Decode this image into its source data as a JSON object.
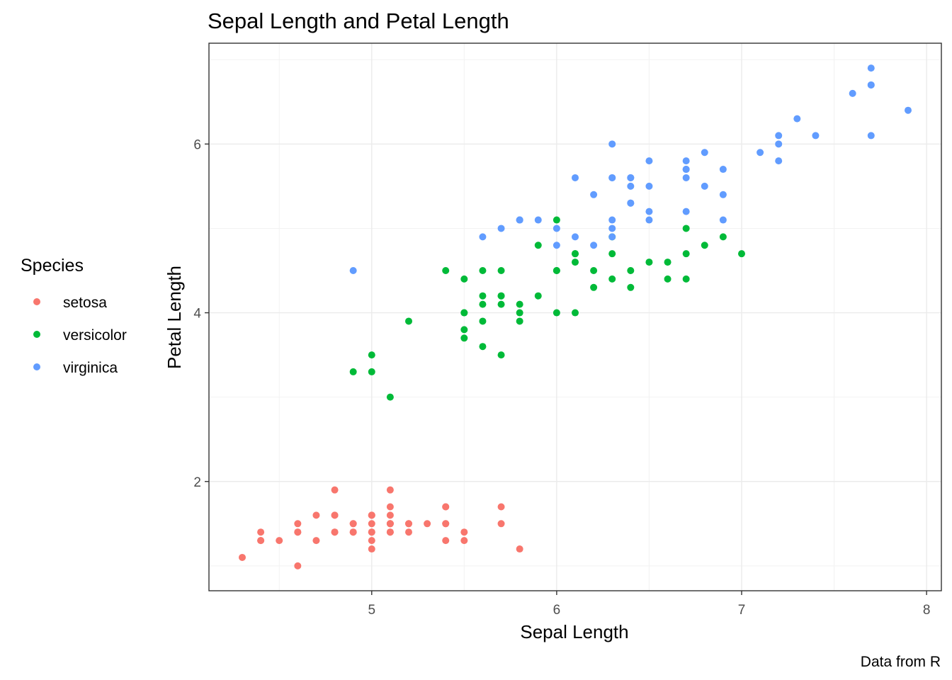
{
  "chart_data": {
    "type": "scatter",
    "title": "Sepal Length and Petal Length",
    "xlabel": "Sepal Length",
    "ylabel": "Petal Length",
    "caption": "Data from R",
    "xlim": [
      4.12,
      8.08
    ],
    "ylim": [
      0.705,
      7.195
    ],
    "xticks": [
      5,
      6,
      7,
      8
    ],
    "yticks": [
      2,
      4,
      6
    ],
    "grid": true,
    "legend": {
      "title": "Species",
      "placement": "left"
    },
    "series": [
      {
        "name": "setosa",
        "color": "#F8766D",
        "points": [
          [
            5.1,
            1.4
          ],
          [
            4.9,
            1.4
          ],
          [
            4.7,
            1.3
          ],
          [
            4.6,
            1.5
          ],
          [
            5.0,
            1.4
          ],
          [
            5.4,
            1.7
          ],
          [
            4.6,
            1.4
          ],
          [
            5.0,
            1.5
          ],
          [
            4.4,
            1.4
          ],
          [
            4.9,
            1.5
          ],
          [
            5.4,
            1.5
          ],
          [
            4.8,
            1.6
          ],
          [
            4.8,
            1.4
          ],
          [
            4.3,
            1.1
          ],
          [
            5.8,
            1.2
          ],
          [
            5.7,
            1.5
          ],
          [
            5.4,
            1.3
          ],
          [
            5.1,
            1.4
          ],
          [
            5.7,
            1.7
          ],
          [
            5.1,
            1.5
          ],
          [
            5.4,
            1.7
          ],
          [
            5.1,
            1.5
          ],
          [
            4.6,
            1.0
          ],
          [
            5.1,
            1.7
          ],
          [
            4.8,
            1.9
          ],
          [
            5.0,
            1.6
          ],
          [
            5.0,
            1.6
          ],
          [
            5.2,
            1.5
          ],
          [
            5.2,
            1.4
          ],
          [
            4.7,
            1.6
          ],
          [
            4.8,
            1.6
          ],
          [
            5.4,
            1.5
          ],
          [
            5.2,
            1.5
          ],
          [
            5.5,
            1.4
          ],
          [
            4.9,
            1.5
          ],
          [
            5.0,
            1.2
          ],
          [
            5.5,
            1.3
          ],
          [
            4.9,
            1.4
          ],
          [
            4.4,
            1.3
          ],
          [
            5.1,
            1.5
          ],
          [
            5.0,
            1.3
          ],
          [
            4.5,
            1.3
          ],
          [
            4.4,
            1.3
          ],
          [
            5.0,
            1.6
          ],
          [
            5.1,
            1.9
          ],
          [
            4.8,
            1.4
          ],
          [
            5.1,
            1.6
          ],
          [
            4.6,
            1.4
          ],
          [
            5.3,
            1.5
          ],
          [
            5.0,
            1.4
          ]
        ]
      },
      {
        "name": "versicolor",
        "color": "#00BA38",
        "points": [
          [
            7.0,
            4.7
          ],
          [
            6.4,
            4.5
          ],
          [
            6.9,
            4.9
          ],
          [
            5.5,
            4.0
          ],
          [
            6.5,
            4.6
          ],
          [
            5.7,
            4.5
          ],
          [
            6.3,
            4.7
          ],
          [
            4.9,
            3.3
          ],
          [
            6.6,
            4.6
          ],
          [
            5.2,
            3.9
          ],
          [
            5.0,
            3.5
          ],
          [
            5.9,
            4.2
          ],
          [
            6.0,
            4.0
          ],
          [
            6.1,
            4.7
          ],
          [
            5.6,
            3.6
          ],
          [
            6.7,
            4.4
          ],
          [
            5.6,
            4.5
          ],
          [
            5.8,
            4.1
          ],
          [
            6.2,
            4.5
          ],
          [
            5.6,
            3.9
          ],
          [
            5.9,
            4.8
          ],
          [
            6.1,
            4.0
          ],
          [
            6.3,
            4.9
          ],
          [
            6.1,
            4.7
          ],
          [
            6.4,
            4.3
          ],
          [
            6.6,
            4.4
          ],
          [
            6.8,
            4.8
          ],
          [
            6.7,
            5.0
          ],
          [
            6.0,
            4.5
          ],
          [
            5.7,
            3.5
          ],
          [
            5.5,
            3.8
          ],
          [
            5.5,
            3.7
          ],
          [
            5.8,
            3.9
          ],
          [
            6.0,
            5.1
          ],
          [
            5.4,
            4.5
          ],
          [
            6.0,
            4.5
          ],
          [
            6.7,
            4.7
          ],
          [
            6.3,
            4.4
          ],
          [
            5.6,
            4.1
          ],
          [
            5.5,
            4.0
          ],
          [
            5.5,
            4.4
          ],
          [
            6.1,
            4.6
          ],
          [
            5.8,
            4.0
          ],
          [
            5.0,
            3.3
          ],
          [
            5.6,
            4.2
          ],
          [
            5.7,
            4.2
          ],
          [
            5.7,
            4.2
          ],
          [
            6.2,
            4.3
          ],
          [
            5.1,
            3.0
          ],
          [
            5.7,
            4.1
          ]
        ]
      },
      {
        "name": "virginica",
        "color": "#619CFF",
        "points": [
          [
            6.3,
            6.0
          ],
          [
            5.8,
            5.1
          ],
          [
            7.1,
            5.9
          ],
          [
            6.3,
            5.6
          ],
          [
            6.5,
            5.8
          ],
          [
            7.6,
            6.6
          ],
          [
            4.9,
            4.5
          ],
          [
            7.3,
            6.3
          ],
          [
            6.7,
            5.8
          ],
          [
            7.2,
            6.1
          ],
          [
            6.5,
            5.1
          ],
          [
            6.4,
            5.3
          ],
          [
            6.8,
            5.5
          ],
          [
            5.7,
            5.0
          ],
          [
            5.8,
            5.1
          ],
          [
            6.4,
            5.3
          ],
          [
            6.5,
            5.5
          ],
          [
            7.7,
            6.7
          ],
          [
            7.7,
            6.9
          ],
          [
            6.0,
            5.0
          ],
          [
            6.9,
            5.7
          ],
          [
            5.6,
            4.9
          ],
          [
            7.7,
            6.7
          ],
          [
            6.3,
            4.9
          ],
          [
            6.7,
            5.7
          ],
          [
            7.2,
            6.0
          ],
          [
            6.2,
            4.8
          ],
          [
            6.1,
            4.9
          ],
          [
            6.4,
            5.6
          ],
          [
            7.2,
            5.8
          ],
          [
            7.4,
            6.1
          ],
          [
            7.9,
            6.4
          ],
          [
            6.4,
            5.6
          ],
          [
            6.3,
            5.1
          ],
          [
            6.1,
            5.6
          ],
          [
            7.7,
            6.1
          ],
          [
            6.3,
            5.6
          ],
          [
            6.4,
            5.5
          ],
          [
            6.0,
            4.8
          ],
          [
            6.9,
            5.4
          ],
          [
            6.7,
            5.6
          ],
          [
            6.9,
            5.1
          ],
          [
            5.8,
            5.1
          ],
          [
            6.8,
            5.9
          ],
          [
            6.7,
            5.7
          ],
          [
            6.7,
            5.2
          ],
          [
            6.3,
            5.0
          ],
          [
            6.5,
            5.2
          ],
          [
            6.2,
            5.4
          ],
          [
            5.9,
            5.1
          ]
        ]
      }
    ]
  }
}
